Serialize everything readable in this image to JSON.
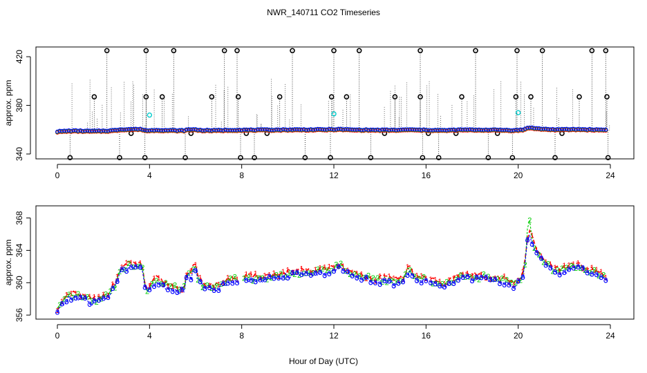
{
  "chart_data": [
    {
      "type": "scatter",
      "title": "NWR_140711  CO2 Timeseries",
      "xlabel": "",
      "ylabel": "approx. ppm",
      "xlim": [
        -1,
        25
      ],
      "ylim": [
        336,
        428
      ],
      "xticks": [
        0,
        4,
        8,
        12,
        16,
        20,
        24
      ],
      "yticks": [
        340,
        380,
        420
      ],
      "baseline": 359.5,
      "step": 0.1,
      "colors": {
        "raw": "#000000",
        "s1": "#ff0000",
        "s2": "#00cc00",
        "s3": "#0000ff",
        "cal": "#00cccc"
      },
      "series_hint": "Series 1/2/3 plotted as symbols with values clipped to plot range; black circles are raw samples with dotted drop lines.",
      "high_spikes_x": [
        2.15,
        3.85,
        5.05,
        7.25,
        7.8,
        10.2,
        12.0,
        13.1,
        15.75,
        18.15,
        19.95,
        21.05,
        23.2,
        23.8
      ],
      "mid_spikes_x": [
        1.6,
        3.85,
        4.55,
        6.7,
        7.85,
        9.65,
        11.9,
        12.55,
        14.65,
        15.75,
        17.55,
        19.9,
        20.55,
        22.65,
        23.85
      ],
      "low_spikes_x": [
        0.55,
        2.7,
        3.8,
        5.55,
        7.95,
        8.55,
        10.75,
        11.85,
        13.6,
        15.85,
        16.55,
        18.7,
        19.75,
        21.6,
        23.9
      ],
      "low_minor_x": [
        3.2,
        5.8,
        8.2,
        9.1,
        14.2,
        16.1,
        17.3,
        19.1,
        21.9
      ],
      "cal_points": [
        [
          4.0,
          372
        ],
        [
          12.0,
          373
        ],
        [
          20.0,
          374
        ]
      ],
      "high_value": 425,
      "mid_value": 387,
      "low_value": 337,
      "low_minor_value": 357
    },
    {
      "type": "scatter",
      "title": "",
      "xlabel": "Hour of Day (UTC)",
      "ylabel": "approx. ppm",
      "xlim": [
        -1,
        25
      ],
      "ylim": [
        355.5,
        369.5
      ],
      "xticks": [
        0,
        4,
        8,
        12,
        16,
        20,
        24
      ],
      "yticks": [
        356,
        360,
        364,
        368
      ],
      "step": 0.1,
      "gaps": [
        [
          7.8,
          8.0
        ],
        [
          16.0,
          16.1
        ]
      ],
      "legend_symbols": [
        "1",
        "2",
        "3"
      ],
      "colors": {
        "s1": "#ff0000",
        "s2": "#00cc00",
        "s3": "#0000ff"
      },
      "profile": [
        [
          0.0,
          356.6
        ],
        [
          0.3,
          357.5
        ],
        [
          0.5,
          358.2
        ],
        [
          0.8,
          358.3
        ],
        [
          1.2,
          357.9
        ],
        [
          1.5,
          357.6
        ],
        [
          1.9,
          358.0
        ],
        [
          2.2,
          358.4
        ],
        [
          2.5,
          359.6
        ],
        [
          2.7,
          361.2
        ],
        [
          2.9,
          361.8
        ],
        [
          3.2,
          362.0
        ],
        [
          3.5,
          362.2
        ],
        [
          3.7,
          361.5
        ],
        [
          3.8,
          359.6
        ],
        [
          3.95,
          358.7
        ],
        [
          4.1,
          359.5
        ],
        [
          4.3,
          360.3
        ],
        [
          4.6,
          359.7
        ],
        [
          5.0,
          359.4
        ],
        [
          5.3,
          359.0
        ],
        [
          5.5,
          359.2
        ],
        [
          5.6,
          360.6
        ],
        [
          5.75,
          361.6
        ],
        [
          5.85,
          360.0
        ],
        [
          5.95,
          363.2
        ],
        [
          6.05,
          360.5
        ],
        [
          6.3,
          359.6
        ],
        [
          6.7,
          359.3
        ],
        [
          7.2,
          359.7
        ],
        [
          7.6,
          360.3
        ],
        [
          8.0,
          360.4
        ],
        [
          9.0,
          360.5
        ],
        [
          9.7,
          360.8
        ],
        [
          10.3,
          361.1
        ],
        [
          11.0,
          361.1
        ],
        [
          11.6,
          361.3
        ],
        [
          12.0,
          361.8
        ],
        [
          12.3,
          361.9
        ],
        [
          12.5,
          361.4
        ],
        [
          12.8,
          360.8
        ],
        [
          13.3,
          360.6
        ],
        [
          13.8,
          360.2
        ],
        [
          14.2,
          360.3
        ],
        [
          14.6,
          360.1
        ],
        [
          15.0,
          360.4
        ],
        [
          15.25,
          361.6
        ],
        [
          15.5,
          360.6
        ],
        [
          15.9,
          360.3
        ],
        [
          16.0,
          360.1
        ],
        [
          16.3,
          359.9
        ],
        [
          16.8,
          359.5
        ],
        [
          17.2,
          360.3
        ],
        [
          17.6,
          360.8
        ],
        [
          18.1,
          360.6
        ],
        [
          18.6,
          360.6
        ],
        [
          19.0,
          360.4
        ],
        [
          19.4,
          360.2
        ],
        [
          19.7,
          359.6
        ],
        [
          20.0,
          360.0
        ],
        [
          20.25,
          361.0
        ],
        [
          20.45,
          366.6
        ],
        [
          20.6,
          365.2
        ],
        [
          20.8,
          363.6
        ],
        [
          21.1,
          362.6
        ],
        [
          21.5,
          361.5
        ],
        [
          21.8,
          361.3
        ],
        [
          22.2,
          361.7
        ],
        [
          22.6,
          361.9
        ],
        [
          23.0,
          361.4
        ],
        [
          23.4,
          361.1
        ],
        [
          23.8,
          360.6
        ]
      ]
    }
  ]
}
